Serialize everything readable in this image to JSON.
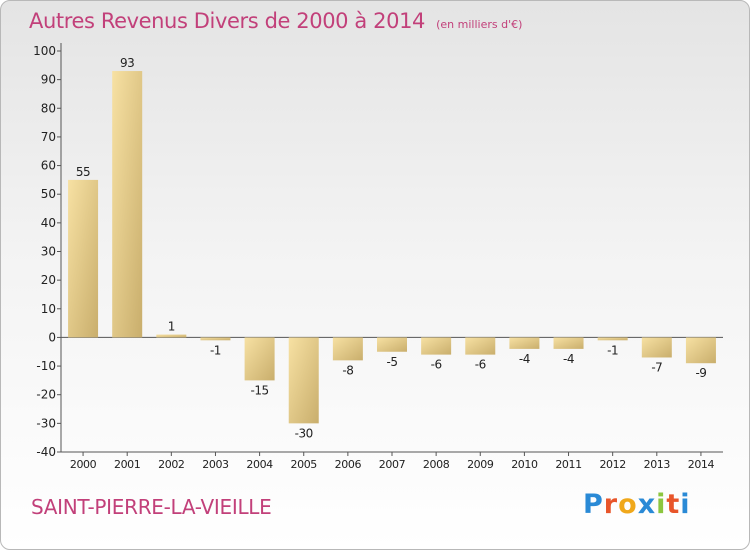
{
  "chart_data": {
    "type": "bar",
    "title": "Autres Revenus Divers de 2000 à 2014",
    "subtitle": "(en milliers d'€)",
    "categories": [
      "2000",
      "2001",
      "2002",
      "2003",
      "2004",
      "2005",
      "2006",
      "2007",
      "2008",
      "2009",
      "2010",
      "2011",
      "2012",
      "2013",
      "2014"
    ],
    "values": [
      55,
      93,
      1,
      -1,
      -15,
      -30,
      -8,
      -5,
      -6,
      -6,
      -4,
      -4,
      -1,
      -7,
      -9
    ],
    "ylim": [
      -40,
      100
    ],
    "yticks": [
      -40,
      -30,
      -20,
      -10,
      0,
      10,
      20,
      30,
      40,
      50,
      60,
      70,
      80,
      90,
      100
    ],
    "grid": false,
    "bar_color_light": "#f7e1a3",
    "bar_color_dark": "#c9ae6c"
  },
  "footer": {
    "place": "SAINT-PIERRE-LA-VIEILLE",
    "brand_letters": [
      "P",
      "r",
      "o",
      "x",
      "i",
      "t",
      "i"
    ],
    "brand_colors": [
      "#2a8ad6",
      "#e8552a",
      "#f0a81b",
      "#2a8ad6",
      "#8cc63f",
      "#e8552a",
      "#2a8ad6"
    ]
  }
}
